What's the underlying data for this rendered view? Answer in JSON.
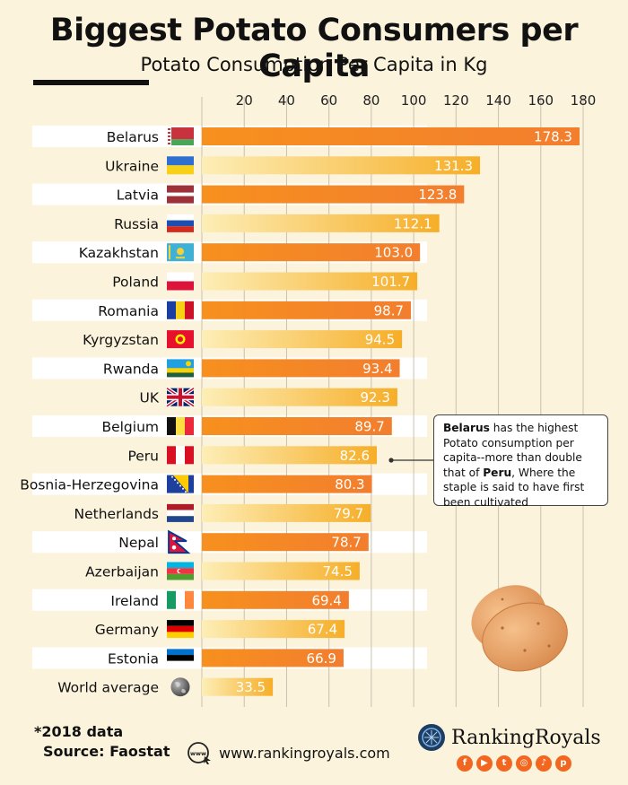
{
  "header": {
    "title": "Biggest Potato Consumers per Capita",
    "subtitle": "Potato Consumption Per Capita in Kg"
  },
  "colors": {
    "bar_dark": "#f2822a",
    "bar_light_start": "#fce9a6",
    "bar_light_end": "#f7b52c",
    "row_stripe": "#ffffff",
    "accent": "#f2661f"
  },
  "chart_data": {
    "type": "bar",
    "orientation": "horizontal",
    "title": "Biggest Potato Consumers per Capita",
    "subtitle": "Potato Consumption Per Capita in Kg",
    "categories": [
      "Belarus",
      "Ukraine",
      "Latvia",
      "Russia",
      "Kazakhstan",
      "Poland",
      "Romania",
      "Kyrgyzstan",
      "Rwanda",
      "UK",
      "Belgium",
      "Peru",
      "Bosnia-Herzegovina",
      "Netherlands",
      "Nepal",
      "Azerbaijan",
      "Ireland",
      "Germany",
      "Estonia",
      "World average"
    ],
    "values": [
      178.3,
      131.3,
      123.8,
      112.1,
      103.0,
      101.7,
      98.7,
      94.5,
      93.4,
      92.3,
      89.7,
      82.6,
      80.3,
      79.7,
      78.7,
      74.5,
      69.4,
      67.4,
      66.9,
      33.5
    ],
    "value_labels": [
      "178.3",
      "131.3",
      "123.8",
      "112.1",
      "103.0",
      "101.7",
      "98.7",
      "94.5",
      "93.4",
      "92.3",
      "89.7",
      "82.6",
      "80.3",
      "79.7",
      "78.7",
      "74.5",
      "69.4",
      "67.4",
      "66.9",
      "33.5"
    ],
    "xticks": [
      "20",
      "40",
      "60",
      "80",
      "100",
      "120",
      "140",
      "160",
      "180"
    ],
    "xlim": [
      0,
      180
    ],
    "grid": true,
    "flags": [
      "flag-belarus",
      "flag-ukraine",
      "flag-latvia",
      "flag-russia",
      "flag-kazakhstan",
      "flag-poland",
      "flag-romania",
      "flag-kyrgyzstan",
      "flag-rwanda",
      "flag-uk",
      "flag-belgium",
      "flag-peru",
      "flag-bosnia-herzegovina",
      "flag-netherlands",
      "flag-nepal",
      "flag-azerbaijan",
      "flag-ireland",
      "flag-germany",
      "flag-estonia",
      "globe-icon"
    ]
  },
  "callout": {
    "b1": "Belarus",
    "t1": " has the highest Potato consumption per capita--more than double that of ",
    "b2": "Peru",
    "t2": ", Where the  staple is said to have first been cultivated"
  },
  "footer": {
    "note": "*2018 data",
    "source": "Source: Faostat",
    "website": "www.rankingroyals.com",
    "brand": "RankingRoyals",
    "www_icon_label": "www"
  }
}
